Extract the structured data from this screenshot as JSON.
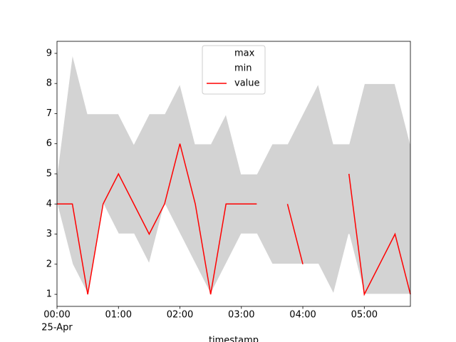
{
  "chart_data": {
    "type": "line",
    "xlabel": "timestamp",
    "x": [
      "00:00",
      "00:15",
      "00:30",
      "00:45",
      "01:00",
      "01:15",
      "01:30",
      "01:45",
      "02:00",
      "02:15",
      "02:30",
      "02:45",
      "03:00",
      "03:15",
      "03:30",
      "03:45",
      "04:00",
      "04:15",
      "04:30",
      "04:45",
      "05:00",
      "05:15",
      "05:30",
      "05:45"
    ],
    "xlim": [
      "00:00",
      "05:45"
    ],
    "xticks": [
      "00:00",
      "01:00",
      "02:00",
      "03:00",
      "04:00",
      "05:00"
    ],
    "xtick_date": "25-Apr",
    "ylim": [
      0.6,
      9.4
    ],
    "yticks": [
      1,
      2,
      3,
      4,
      5,
      6,
      7,
      8,
      9
    ],
    "fill_color": "#d3d3d3",
    "legend_position": "upper center",
    "series": [
      {
        "name": "max",
        "color": "#ffffff",
        "values": [
          5,
          9,
          7,
          7,
          7,
          6,
          7,
          7,
          8,
          6,
          6,
          7,
          5,
          5,
          6,
          6,
          7,
          8,
          6,
          6,
          8,
          8,
          8,
          6
        ]
      },
      {
        "name": "min",
        "color": "#ffffff",
        "values": [
          4,
          2,
          1,
          4,
          3,
          3,
          2,
          4,
          3,
          2,
          1,
          2,
          3,
          3,
          2,
          2,
          2,
          2,
          1,
          3,
          1,
          1,
          1,
          1
        ]
      },
      {
        "name": "value",
        "color": "#ff0000",
        "values": [
          4,
          4,
          1,
          4,
          5,
          4,
          3,
          4,
          6,
          4,
          1,
          4,
          4,
          4,
          null,
          4,
          2,
          null,
          null,
          5,
          1,
          2,
          3,
          1
        ]
      }
    ]
  }
}
